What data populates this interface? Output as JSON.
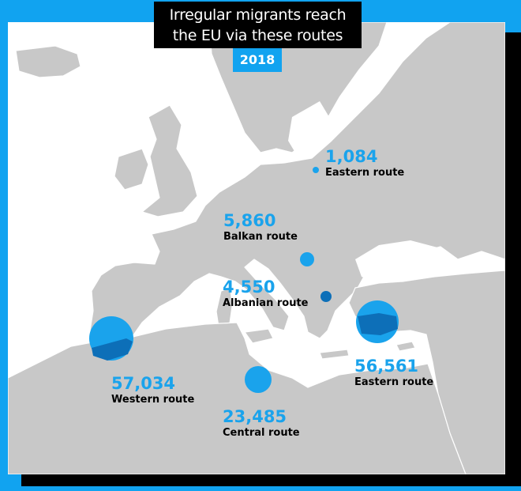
{
  "title_lines": [
    "Irregular migrants reach",
    "the EU via these routes"
  ],
  "year": "2018",
  "colors": {
    "background": "#11a3f0",
    "land": "#c8c8c8",
    "sea": "#ffffff",
    "bubble": "#1aa3ec",
    "bubble_overlap": "#0d6fb8"
  },
  "routes": [
    {
      "id": "eastern-north",
      "value": "1,084",
      "value_num": 1084,
      "label": "Eastern route"
    },
    {
      "id": "balkan",
      "value": "5,860",
      "value_num": 5860,
      "label": "Balkan route"
    },
    {
      "id": "albanian",
      "value": "4,550",
      "value_num": 4550,
      "label": "Albanian route"
    },
    {
      "id": "western",
      "value": "57,034",
      "value_num": 57034,
      "label": "Western route"
    },
    {
      "id": "central",
      "value": "23,485",
      "value_num": 23485,
      "label": "Central route"
    },
    {
      "id": "eastern-med",
      "value": "56,561",
      "value_num": 56561,
      "label": "Eastern route"
    }
  ]
}
